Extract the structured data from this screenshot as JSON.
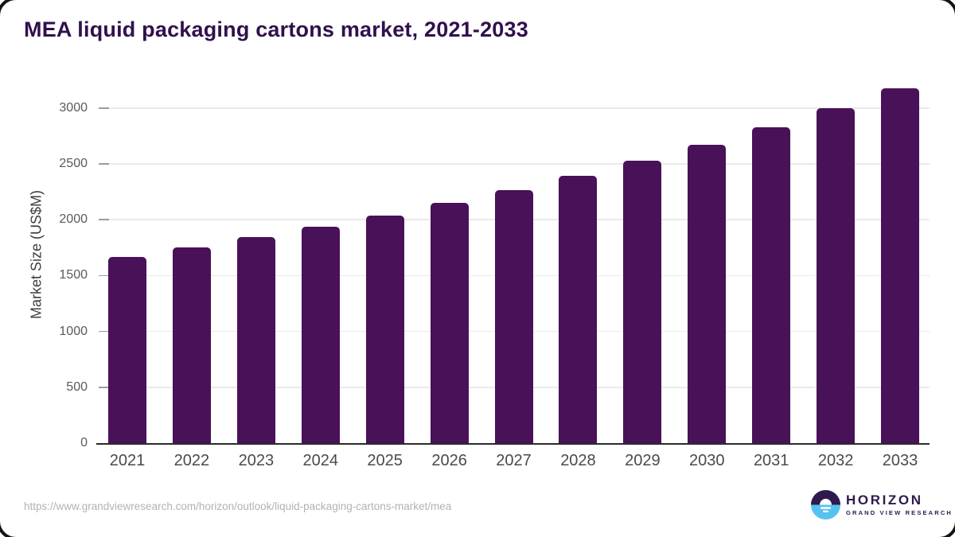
{
  "chart_data": {
    "type": "bar",
    "title": "MEA liquid packaging cartons market, 2021-2033",
    "categories": [
      "2021",
      "2022",
      "2023",
      "2024",
      "2025",
      "2026",
      "2027",
      "2028",
      "2029",
      "2030",
      "2031",
      "2032",
      "2033"
    ],
    "values": [
      1665,
      1750,
      1842,
      1938,
      2040,
      2152,
      2262,
      2390,
      2528,
      2668,
      2828,
      3000,
      3175
    ],
    "xlabel": "",
    "ylabel": "Market Size (US$M)",
    "yticks": [
      0,
      500,
      1000,
      1500,
      2000,
      2500,
      3000
    ],
    "ylim": [
      0,
      3250
    ],
    "grid": true,
    "legend": false,
    "bar_color": "#491158"
  },
  "footer": {
    "source_url": "https://www.grandviewresearch.com/horizon/outlook/liquid-packaging-cartons-market/mea",
    "logo": {
      "name": "HORIZON",
      "tagline": "GRAND VIEW RESEARCH",
      "icon": "horizon-sun-circle-icon",
      "purple": "#2e1a4e",
      "blue": "#55c3ef"
    }
  },
  "colors": {
    "title_text": "#31104e",
    "bar": "#491158",
    "gridline": "#eaeaea",
    "axis_line": "#2b2b2b",
    "tick": "#9c9c9c",
    "tick_label_text": "#5a5a5a",
    "url_text": "#b2b2b2"
  }
}
